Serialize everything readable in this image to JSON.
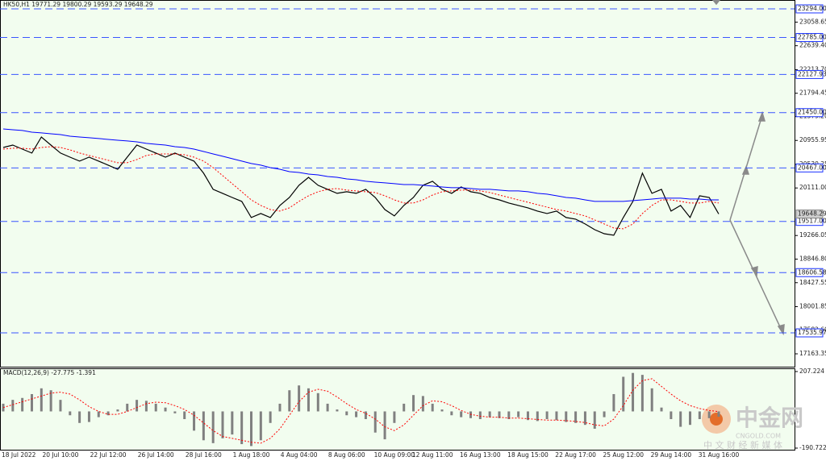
{
  "chart_data": [
    {
      "type": "line",
      "title": "HK50,H1 19771.29 19800.29 19593.29 19648.29",
      "categories": [
        null,
        "18 Jul 2022",
        null,
        null,
        null,
        null,
        "20 Jul 10:00",
        null,
        null,
        null,
        null,
        "22 Jul 12:00",
        null,
        null,
        null,
        null,
        "26 Jul 14:00",
        null,
        null,
        null,
        null,
        "28 Jul 16:00",
        null,
        null,
        null,
        null,
        "1 Aug 18:00",
        null,
        null,
        null,
        null,
        "4 Aug 04:00",
        null,
        null,
        null,
        null,
        "8 Aug 06:00",
        null,
        null,
        null,
        null,
        "10 Aug 09:00",
        null,
        null,
        null,
        "12 Aug 11:00",
        null,
        null,
        null,
        null,
        "16 Aug 13:00",
        null,
        null,
        null,
        null,
        "18 Aug 15:00",
        null,
        null,
        null,
        null,
        "22 Aug 17:00",
        null,
        null,
        null,
        null,
        "25 Aug 12:00",
        null,
        null,
        null,
        null,
        "29 Aug 14:00",
        null,
        null,
        null,
        null,
        "31 Aug 16:00"
      ],
      "series": [
        {
          "color": "#000000",
          "values": [
            20831,
            20874,
            20802,
            20731,
            21017,
            20874,
            20731,
            20659,
            20588,
            20659,
            20588,
            20516,
            20444,
            20659,
            20874,
            20802,
            20731,
            20659,
            20731,
            20659,
            20588,
            20373,
            20087,
            20015,
            19943,
            19872,
            19585,
            19657,
            19585,
            19800,
            19943,
            20158,
            20301,
            20158,
            20087,
            20015,
            20044,
            20015,
            20087,
            19943,
            19728,
            19614,
            19800,
            19943,
            20158,
            20230,
            20087,
            20015,
            20129,
            20044,
            20015,
            19943,
            19900,
            19843,
            19800,
            19757,
            19700,
            19657,
            19700,
            19585,
            19557,
            19471,
            19370,
            19298,
            19270,
            19585,
            19872,
            20373,
            20015,
            20087,
            19700,
            19800,
            19585,
            19972,
            19943,
            19648.29
          ]
        },
        {
          "color": "#0000ff",
          "values": [
            21160,
            21146,
            21132,
            21103,
            21089,
            21074,
            21060,
            21031,
            21017,
            21003,
            20989,
            20974,
            20960,
            20946,
            20931,
            20903,
            20888,
            20874,
            20845,
            20831,
            20802,
            20759,
            20716,
            20674,
            20631,
            20588,
            20545,
            20516,
            20473,
            20444,
            20401,
            20387,
            20358,
            20344,
            20315,
            20301,
            20272,
            20258,
            20230,
            20215,
            20201,
            20187,
            20172,
            20172,
            20158,
            20144,
            20129,
            20115,
            20115,
            20101,
            20087,
            20087,
            20072,
            20058,
            20058,
            20044,
            20015,
            20001,
            19972,
            19943,
            19929,
            19900,
            19872,
            19872,
            19872,
            19872,
            19886,
            19900,
            19914,
            19929,
            19929,
            19929,
            19914,
            19914,
            19900,
            19900
          ]
        },
        {
          "color": "#ff0000",
          "dash": true,
          "values": [
            20802,
            20817,
            20817,
            20802,
            20831,
            20845,
            20831,
            20788,
            20731,
            20688,
            20645,
            20602,
            20559,
            20559,
            20616,
            20688,
            20716,
            20716,
            20716,
            20702,
            20659,
            20588,
            20473,
            20330,
            20187,
            20044,
            19900,
            19800,
            19728,
            19700,
            19757,
            19872,
            19972,
            20044,
            20087,
            20101,
            20072,
            20058,
            20044,
            20029,
            19972,
            19900,
            19843,
            19843,
            19900,
            19986,
            20044,
            20058,
            20072,
            20072,
            20058,
            20029,
            19986,
            19943,
            19900,
            19857,
            19814,
            19771,
            19728,
            19700,
            19657,
            19614,
            19542,
            19471,
            19399,
            19385,
            19471,
            19657,
            19800,
            19900,
            19900,
            19872,
            19843,
            19843,
            19872,
            19843
          ]
        }
      ],
      "ylim": [
        16934.4,
        23451.6
      ],
      "yticks": [
        23058.65,
        {
          "value": 22639.4,
          "label": "22639.40"
        },
        {
          "value": 22213.7,
          "label": "22213.70"
        },
        21794.45,
        {
          "value": 21379.2,
          "label": "21379.20"
        },
        20955.95,
        20530.25,
        {
          "value": 20111.0,
          "label": "20111.00"
        },
        19266.05,
        {
          "value": 18846.8,
          "label": "18846.80"
        },
        18427.55,
        18001.85,
        {
          "value": 17582.6,
          "label": "17582.60"
        },
        17163.35
      ],
      "levels": [
        {
          "value": 23294.0,
          "label": "23294.00"
        },
        {
          "value": 22785.0,
          "label": "22785.00"
        },
        22127.93,
        {
          "value": 21450.0,
          "label": "21450.00"
        },
        {
          "value": 20467.0,
          "label": "20467.00"
        },
        {
          "value": 19517.0,
          "label": "19517.00"
        },
        18606.58,
        17535.97
      ],
      "last_price": 19648.29
    },
    {
      "type": "bar",
      "title": "MACD(12,26,9) -27.775 -1.391",
      "series": [
        {
          "color": "#808080",
          "values": [
            40,
            60,
            70,
            90,
            120,
            110,
            60,
            -20,
            -60,
            -55,
            -30,
            -20,
            10,
            40,
            60,
            55,
            40,
            20,
            -10,
            -40,
            -100,
            -150,
            -165,
            -140,
            -120,
            -170,
            -180,
            -150,
            -60,
            40,
            110,
            135,
            120,
            95,
            40,
            10,
            -20,
            -30,
            -40,
            -110,
            -145,
            -60,
            40,
            85,
            80,
            40,
            10,
            -20,
            -30,
            -35,
            -40,
            -30,
            -35,
            -40,
            -30,
            -45,
            -50,
            -40,
            -45,
            -55,
            -60,
            -70,
            -90,
            -30,
            90,
            180,
            200,
            190,
            120,
            20,
            -40,
            -80,
            -70,
            -40,
            -35,
            -27.775
          ]
        },
        {
          "color": "#ff0000",
          "dash": true,
          "values": [
            20,
            35,
            50,
            65,
            80,
            95,
            100,
            90,
            60,
            25,
            0,
            -15,
            -15,
            0,
            20,
            40,
            48,
            45,
            30,
            10,
            -20,
            -60,
            -100,
            -130,
            -140,
            -150,
            -160,
            -165,
            -140,
            -90,
            -20,
            50,
            100,
            115,
            105,
            75,
            40,
            10,
            -10,
            -40,
            -80,
            -100,
            -70,
            -20,
            30,
            55,
            50,
            30,
            5,
            -15,
            -25,
            -30,
            -30,
            -35,
            -35,
            -38,
            -42,
            -45,
            -45,
            -48,
            -52,
            -58,
            -70,
            -75,
            -40,
            30,
            110,
            160,
            170,
            130,
            90,
            55,
            30,
            15,
            5,
            -1.391
          ]
        }
      ],
      "ylim": [
        -199.1,
        223.98
      ],
      "yticks": [
        207.224,
        -190.722
      ]
    }
  ],
  "watermark": {
    "name": "中金网",
    "site": "CNGOLD.COM",
    "slogan": "中 文 财 经 新 媒 体"
  }
}
